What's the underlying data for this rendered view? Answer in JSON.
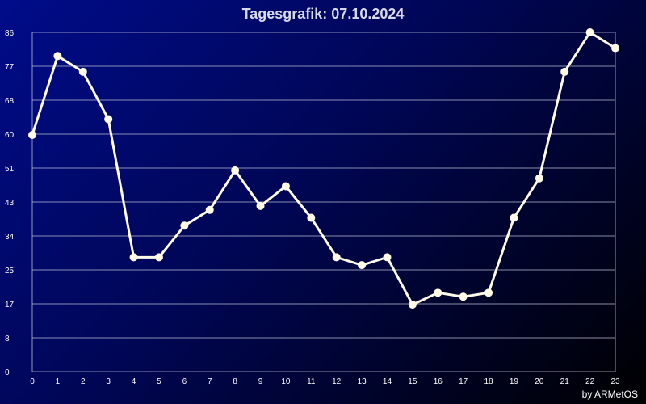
{
  "colors": {
    "title": "#d6dae8",
    "text": "#ffffff",
    "grid": "#b7bbd2",
    "line": "#fffbe8"
  },
  "credit": "by ARMetOS",
  "chart_data": {
    "type": "line",
    "title": "Tagesgrafik: 07.10.2024",
    "xlabel": "",
    "ylabel": "",
    "x": [
      0,
      1,
      2,
      3,
      4,
      5,
      6,
      7,
      8,
      9,
      10,
      11,
      12,
      13,
      14,
      15,
      16,
      17,
      18,
      19,
      20,
      21,
      22,
      23
    ],
    "values": [
      60,
      80,
      76,
      64,
      29,
      29,
      37,
      41,
      51,
      42,
      47,
      39,
      29,
      27,
      29,
      17,
      20,
      19,
      20,
      39,
      49,
      76,
      86,
      82
    ],
    "ylim": [
      0,
      86
    ],
    "yticks": [
      "0",
      "8",
      "17",
      "25",
      "34",
      "43",
      "51",
      "60",
      "68",
      "77",
      "86"
    ],
    "xticks": [
      "0",
      "1",
      "2",
      "3",
      "4",
      "5",
      "6",
      "7",
      "8",
      "9",
      "10",
      "11",
      "12",
      "13",
      "14",
      "15",
      "16",
      "17",
      "18",
      "19",
      "20",
      "21",
      "22",
      "23"
    ],
    "grid": true,
    "legend": "none"
  }
}
